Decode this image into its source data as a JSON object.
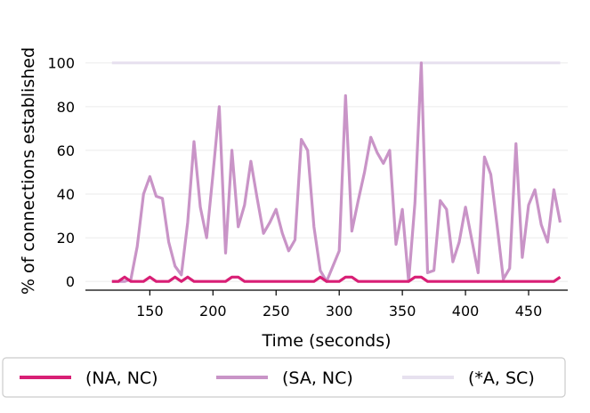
{
  "chart_data": {
    "type": "line",
    "title": "",
    "xlabel": "Time (seconds)",
    "ylabel": "% of connections established",
    "xlim": [
      99,
      481
    ],
    "ylim": [
      -4,
      106
    ],
    "xticks": [
      150,
      200,
      250,
      300,
      350,
      400,
      450
    ],
    "yticks": [
      0,
      20,
      40,
      60,
      80,
      100
    ],
    "grid": "horizontal",
    "legend_position": "bottom",
    "series": [
      {
        "name": "(NA, NC)",
        "color": "#d81f75",
        "points": [
          [
            120,
            0
          ],
          [
            125,
            0
          ],
          [
            130,
            2
          ],
          [
            135,
            0
          ],
          [
            140,
            0
          ],
          [
            145,
            0
          ],
          [
            150,
            2
          ],
          [
            155,
            0
          ],
          [
            160,
            0
          ],
          [
            165,
            0
          ],
          [
            170,
            2
          ],
          [
            175,
            0
          ],
          [
            180,
            2
          ],
          [
            185,
            0
          ],
          [
            190,
            0
          ],
          [
            195,
            0
          ],
          [
            200,
            0
          ],
          [
            205,
            0
          ],
          [
            210,
            0
          ],
          [
            215,
            2
          ],
          [
            220,
            2
          ],
          [
            225,
            0
          ],
          [
            230,
            0
          ],
          [
            235,
            0
          ],
          [
            240,
            0
          ],
          [
            245,
            0
          ],
          [
            250,
            0
          ],
          [
            255,
            0
          ],
          [
            260,
            0
          ],
          [
            265,
            0
          ],
          [
            270,
            0
          ],
          [
            275,
            0
          ],
          [
            280,
            0
          ],
          [
            285,
            2
          ],
          [
            290,
            0
          ],
          [
            295,
            0
          ],
          [
            300,
            0
          ],
          [
            305,
            2
          ],
          [
            310,
            2
          ],
          [
            315,
            0
          ],
          [
            320,
            0
          ],
          [
            325,
            0
          ],
          [
            330,
            0
          ],
          [
            335,
            0
          ],
          [
            340,
            0
          ],
          [
            345,
            0
          ],
          [
            350,
            0
          ],
          [
            355,
            0
          ],
          [
            360,
            2
          ],
          [
            365,
            2
          ],
          [
            370,
            0
          ],
          [
            375,
            0
          ],
          [
            380,
            0
          ],
          [
            385,
            0
          ],
          [
            390,
            0
          ],
          [
            395,
            0
          ],
          [
            400,
            0
          ],
          [
            405,
            0
          ],
          [
            410,
            0
          ],
          [
            415,
            0
          ],
          [
            420,
            0
          ],
          [
            425,
            0
          ],
          [
            430,
            0
          ],
          [
            435,
            0
          ],
          [
            440,
            0
          ],
          [
            445,
            0
          ],
          [
            450,
            0
          ],
          [
            455,
            0
          ],
          [
            460,
            0
          ],
          [
            465,
            0
          ],
          [
            470,
            0
          ],
          [
            475,
            2
          ]
        ]
      },
      {
        "name": "(SA, NC)",
        "color": "#c994c7",
        "points": [
          [
            120,
            0
          ],
          [
            125,
            0
          ],
          [
            130,
            0
          ],
          [
            135,
            1
          ],
          [
            140,
            16
          ],
          [
            145,
            40
          ],
          [
            150,
            48
          ],
          [
            155,
            39
          ],
          [
            160,
            38
          ],
          [
            165,
            18
          ],
          [
            170,
            7
          ],
          [
            175,
            3
          ],
          [
            180,
            27
          ],
          [
            185,
            64
          ],
          [
            190,
            34
          ],
          [
            195,
            20
          ],
          [
            200,
            49
          ],
          [
            205,
            80
          ],
          [
            210,
            13
          ],
          [
            215,
            60
          ],
          [
            220,
            25
          ],
          [
            225,
            35
          ],
          [
            230,
            55
          ],
          [
            235,
            38
          ],
          [
            240,
            22
          ],
          [
            245,
            27
          ],
          [
            250,
            33
          ],
          [
            255,
            22
          ],
          [
            260,
            14
          ],
          [
            265,
            19
          ],
          [
            270,
            65
          ],
          [
            275,
            60
          ],
          [
            280,
            25
          ],
          [
            285,
            5
          ],
          [
            290,
            0
          ],
          [
            295,
            7
          ],
          [
            300,
            14
          ],
          [
            305,
            85
          ],
          [
            310,
            23
          ],
          [
            315,
            37
          ],
          [
            320,
            50
          ],
          [
            325,
            66
          ],
          [
            330,
            59
          ],
          [
            335,
            54
          ],
          [
            340,
            60
          ],
          [
            345,
            17
          ],
          [
            350,
            33
          ],
          [
            355,
            0
          ],
          [
            360,
            36
          ],
          [
            365,
            100
          ],
          [
            370,
            4
          ],
          [
            375,
            5
          ],
          [
            380,
            37
          ],
          [
            385,
            33
          ],
          [
            390,
            9
          ],
          [
            395,
            18
          ],
          [
            400,
            34
          ],
          [
            405,
            19
          ],
          [
            410,
            4
          ],
          [
            415,
            57
          ],
          [
            420,
            49
          ],
          [
            425,
            26
          ],
          [
            430,
            1
          ],
          [
            435,
            6
          ],
          [
            440,
            63
          ],
          [
            445,
            11
          ],
          [
            450,
            35
          ],
          [
            455,
            42
          ],
          [
            460,
            26
          ],
          [
            465,
            18
          ],
          [
            470,
            42
          ],
          [
            475,
            27
          ]
        ]
      },
      {
        "name": "(*A, SC)",
        "color": "#e7e1ef",
        "points": [
          [
            120,
            100
          ],
          [
            475,
            100
          ]
        ]
      }
    ]
  }
}
